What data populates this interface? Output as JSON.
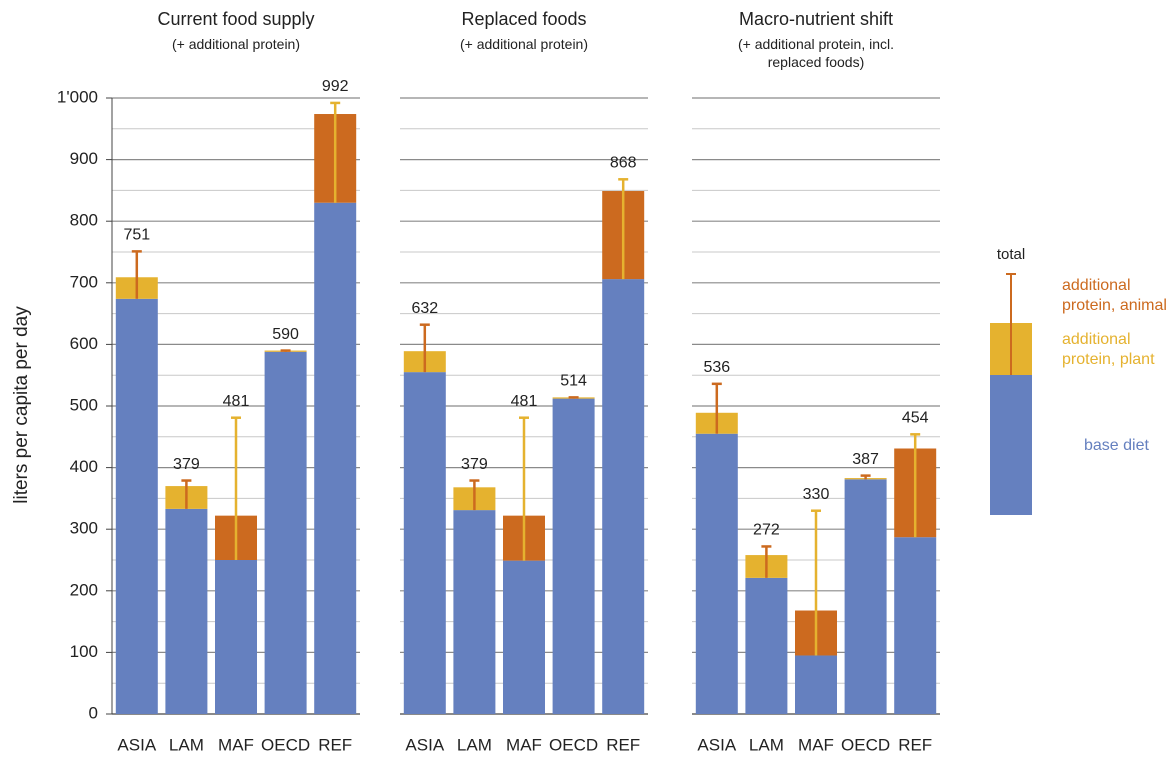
{
  "chart_data": [
    {
      "type": "bar",
      "title": "Current food supply",
      "subtitle": "(+ additional protein)",
      "y_label": "liters per capita per day",
      "categories": [
        "ASIA",
        "LAM",
        "MAF",
        "OECD",
        "REF"
      ],
      "series": [
        {
          "name": "base diet",
          "color": "#6580bf",
          "values": [
            674,
            333,
            250,
            588,
            830
          ]
        },
        {
          "name": "additional protein, plant",
          "color": "#e5b22f",
          "values": [
            35,
            37,
            0,
            2,
            0
          ]
        },
        {
          "name": "additional protein, animal",
          "color": "#cc6a1f",
          "values": [
            0,
            0,
            72,
            0,
            144
          ]
        }
      ],
      "totals_label": "total",
      "totals": [
        751,
        379,
        481,
        590,
        992
      ],
      "ylim": [
        0,
        1000
      ],
      "yticks": [
        0,
        100,
        200,
        300,
        400,
        500,
        600,
        700,
        800,
        900,
        {
          "value": 1000,
          "label": "1'000"
        }
      ],
      "minor_yticks": [
        50,
        150,
        250,
        350,
        450,
        550,
        650,
        750,
        850,
        950
      ],
      "grid": true
    },
    {
      "type": "bar",
      "title": "Replaced foods",
      "subtitle": "(+ additional protein)",
      "categories": [
        "ASIA",
        "LAM",
        "MAF",
        "OECD",
        "REF"
      ],
      "series": [
        {
          "name": "base diet",
          "color": "#6580bf",
          "values": [
            555,
            331,
            249,
            512,
            706
          ]
        },
        {
          "name": "additional protein, plant",
          "color": "#e5b22f",
          "values": [
            34,
            37,
            0,
            2,
            0
          ]
        },
        {
          "name": "additional protein, animal",
          "color": "#cc6a1f",
          "values": [
            0,
            0,
            73,
            0,
            143
          ]
        }
      ],
      "totals": [
        632,
        379,
        481,
        514,
        868
      ],
      "ylim": [
        0,
        1000
      ],
      "grid": true
    },
    {
      "type": "bar",
      "title": "Macro-nutrient shift",
      "subtitle": "(+ additional protein, incl. replaced foods)",
      "categories": [
        "ASIA",
        "LAM",
        "MAF",
        "OECD",
        "REF"
      ],
      "series": [
        {
          "name": "base diet",
          "color": "#6580bf",
          "values": [
            455,
            221,
            95,
            381,
            287
          ]
        },
        {
          "name": "additional protein, plant",
          "color": "#e5b22f",
          "values": [
            34,
            37,
            0,
            2,
            0
          ]
        },
        {
          "name": "additional protein, animal",
          "color": "#cc6a1f",
          "values": [
            0,
            0,
            73,
            0,
            144
          ]
        }
      ],
      "totals": [
        536,
        272,
        330,
        387,
        454
      ],
      "ylim": [
        0,
        1000
      ],
      "grid": true
    }
  ]
}
